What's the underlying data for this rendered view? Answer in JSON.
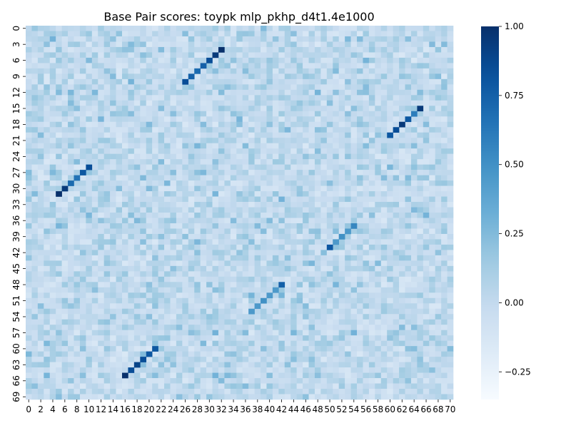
{
  "chart_data": {
    "type": "heatmap",
    "title": "Base Pair scores: toypk mlp_pkhp_d4t1.4e1000",
    "xlabel": "",
    "ylabel": "",
    "n_rows": 70,
    "n_cols": 71,
    "x_tick_labels": [
      "0",
      "2",
      "4",
      "6",
      "8",
      "10",
      "12",
      "14",
      "16",
      "18",
      "20",
      "22",
      "24",
      "26",
      "28",
      "30",
      "32",
      "34",
      "36",
      "38",
      "40",
      "42",
      "44",
      "46",
      "48",
      "50",
      "52",
      "54",
      "56",
      "58",
      "60",
      "62",
      "64",
      "66",
      "68",
      "70"
    ],
    "y_tick_labels": [
      "0",
      "3",
      "6",
      "9",
      "12",
      "15",
      "18",
      "21",
      "24",
      "27",
      "30",
      "33",
      "36",
      "39",
      "42",
      "45",
      "48",
      "51",
      "54",
      "57",
      "60",
      "63",
      "66",
      "69"
    ],
    "colorbar": {
      "min": -0.35,
      "max": 1.0,
      "ticks": [
        -0.25,
        0.0,
        0.25,
        0.5,
        0.75,
        1.0
      ],
      "tick_labels": [
        "−0.25",
        "0.00",
        "0.25",
        "0.50",
        "0.75",
        "1.00"
      ],
      "colormap": "Blues"
    },
    "background_value_range": [
      -0.2,
      0.3
    ],
    "diagonal_segments": [
      {
        "points": [
          [
            32,
            4
          ],
          [
            31,
            5
          ],
          [
            30,
            6
          ],
          [
            29,
            7
          ],
          [
            28,
            8
          ],
          [
            27,
            9
          ],
          [
            26,
            10
          ]
        ],
        "values": [
          1.0,
          0.95,
          0.85,
          0.75,
          0.7,
          0.75,
          0.85
        ]
      },
      {
        "points": [
          [
            65,
            15
          ],
          [
            64,
            16
          ],
          [
            63,
            17
          ],
          [
            62,
            18
          ],
          [
            61,
            19
          ],
          [
            60,
            20
          ]
        ],
        "values": [
          0.95,
          0.6,
          0.8,
          0.95,
          0.85,
          0.8
        ]
      },
      {
        "points": [
          [
            10,
            26
          ],
          [
            9,
            27
          ],
          [
            8,
            28
          ],
          [
            7,
            29
          ],
          [
            6,
            30
          ],
          [
            5,
            31
          ]
        ],
        "values": [
          0.85,
          0.8,
          0.65,
          0.7,
          0.95,
          1.0
        ]
      },
      {
        "points": [
          [
            54,
            37
          ],
          [
            53,
            38
          ],
          [
            52,
            39
          ],
          [
            51,
            40
          ],
          [
            50,
            41
          ]
        ],
        "values": [
          0.55,
          0.45,
          0.5,
          0.45,
          0.8
        ]
      },
      {
        "points": [
          [
            42,
            48
          ],
          [
            41,
            49
          ],
          [
            40,
            50
          ],
          [
            39,
            51
          ],
          [
            38,
            52
          ],
          [
            37,
            53
          ]
        ],
        "values": [
          0.75,
          0.45,
          0.45,
          0.5,
          0.45,
          0.45
        ]
      },
      {
        "points": [
          [
            21,
            60
          ],
          [
            20,
            61
          ],
          [
            19,
            62
          ],
          [
            18,
            63
          ],
          [
            17,
            64
          ],
          [
            16,
            65
          ]
        ],
        "values": [
          0.8,
          0.8,
          0.85,
          0.9,
          0.85,
          1.0
        ]
      }
    ]
  }
}
